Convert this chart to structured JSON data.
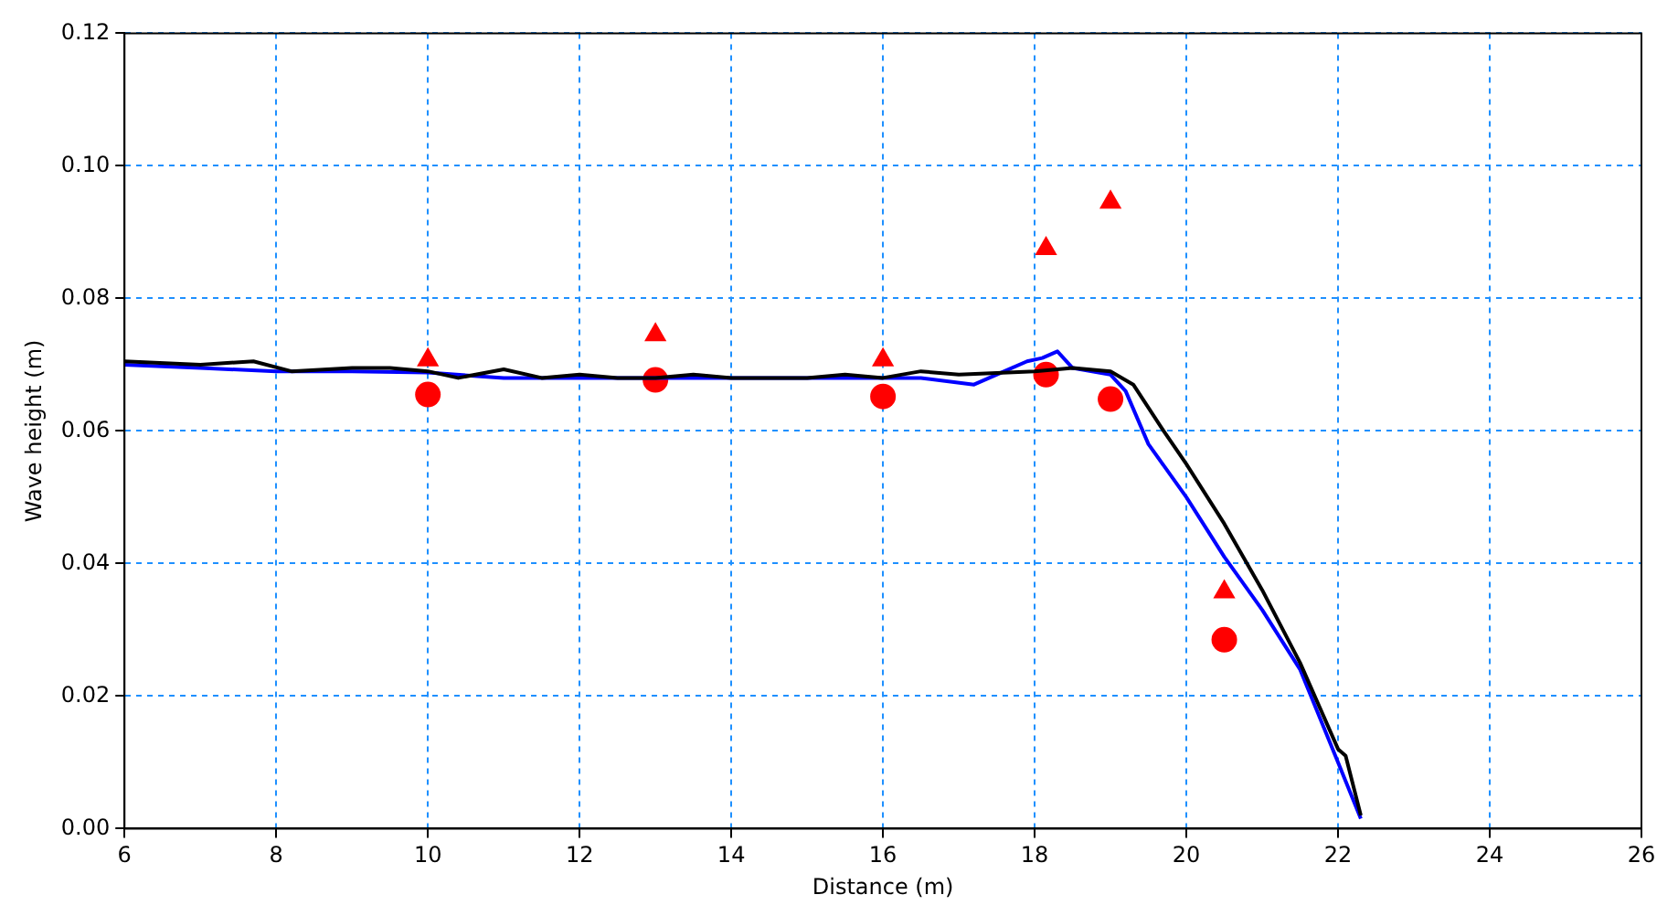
{
  "chart_data": {
    "type": "line",
    "xlabel": "Distance (m)",
    "ylabel": "Wave height (m)",
    "xlim": [
      6,
      26
    ],
    "xticks": [
      6,
      8,
      10,
      12,
      14,
      16,
      18,
      20,
      22,
      24,
      26
    ],
    "ylim": [
      0,
      0.12
    ],
    "yticks": [
      {
        "value": 0,
        "label": "0.00"
      },
      {
        "value": 0.02,
        "label": "0.02"
      },
      {
        "value": 0.04,
        "label": "0.04"
      },
      {
        "value": 0.06,
        "label": "0.06"
      },
      {
        "value": 0.08,
        "label": "0.08"
      },
      {
        "value": 0.1,
        "label": "0.10"
      },
      {
        "value": 0.12,
        "label": "0.12"
      }
    ],
    "grid": true,
    "legend": false,
    "series": [
      {
        "color": "#000000",
        "marker": "none",
        "x": [
          6,
          7,
          7.7,
          8.2,
          9,
          9.5,
          10,
          10.4,
          11,
          11.5,
          12,
          12.5,
          13,
          13.5,
          14,
          15,
          15.5,
          16,
          16.5,
          17,
          18,
          18.5,
          19,
          19.3,
          19.7,
          20,
          20.5,
          21,
          21.5,
          22,
          22.1,
          22.3
        ],
        "values": [
          0.0705,
          0.07,
          0.0705,
          0.069,
          0.0695,
          0.0695,
          0.069,
          0.068,
          0.0693,
          0.068,
          0.0685,
          0.068,
          0.068,
          0.0685,
          0.068,
          0.068,
          0.0685,
          0.068,
          0.069,
          0.0685,
          0.069,
          0.0695,
          0.069,
          0.067,
          0.06,
          0.055,
          0.046,
          0.036,
          0.025,
          0.012,
          0.011,
          0.002
        ]
      },
      {
        "color": "#0000ff",
        "marker": "none",
        "x": [
          6,
          7,
          8,
          9,
          10,
          11,
          12,
          13,
          14,
          15,
          16,
          16.5,
          17.2,
          17.6,
          17.9,
          18.1,
          18.3,
          18.5,
          19,
          19.2,
          19.5,
          20,
          20.5,
          21,
          21.5,
          22,
          22.3
        ],
        "values": [
          0.07,
          0.0695,
          0.069,
          0.069,
          0.0688,
          0.068,
          0.068,
          0.068,
          0.068,
          0.068,
          0.068,
          0.068,
          0.067,
          0.069,
          0.0705,
          0.071,
          0.072,
          0.0695,
          0.0685,
          0.066,
          0.058,
          0.05,
          0.041,
          0.033,
          0.024,
          0.01,
          0.0015
        ]
      },
      {
        "type": "scatter",
        "color": "#ff0000",
        "marker": "circle",
        "x": [
          10,
          13,
          16,
          18.15,
          19,
          20.5
        ],
        "values": [
          0.0655,
          0.0677,
          0.0652,
          0.0685,
          0.0648,
          0.0285
        ]
      },
      {
        "type": "scatter",
        "color": "#ff0000",
        "marker": "triangle",
        "x": [
          10,
          13,
          16,
          18.15,
          19,
          20.5
        ],
        "values": [
          0.0707,
          0.0745,
          0.0707,
          0.0875,
          0.0945,
          0.0357
        ]
      }
    ]
  }
}
